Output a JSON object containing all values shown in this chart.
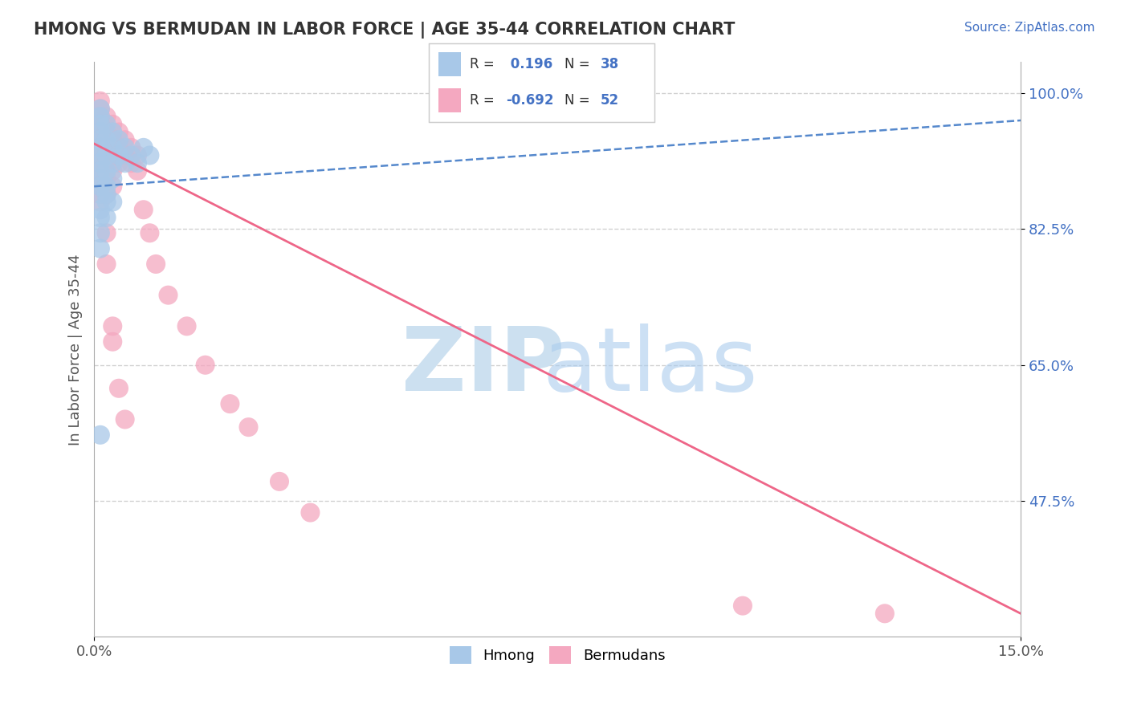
{
  "title": "HMONG VS BERMUDAN IN LABOR FORCE | AGE 35-44 CORRELATION CHART",
  "source": "Source: ZipAtlas.com",
  "ylabel": "In Labor Force | Age 35-44",
  "xlim": [
    0.0,
    0.15
  ],
  "ylim": [
    0.3,
    1.04
  ],
  "xticks": [
    0.0,
    0.15
  ],
  "xticklabels": [
    "0.0%",
    "15.0%"
  ],
  "yticks": [
    0.475,
    0.65,
    0.825,
    1.0
  ],
  "yticklabels": [
    "47.5%",
    "65.0%",
    "82.5%",
    "100.0%"
  ],
  "hmong_R": 0.196,
  "hmong_N": 38,
  "bermudan_R": -0.692,
  "bermudan_N": 52,
  "hmong_color": "#a8c8e8",
  "bermudan_color": "#f4a8c0",
  "hmong_line_color": "#5588cc",
  "bermudan_line_color": "#ee6688",
  "background_color": "#ffffff",
  "grid_color": "#cccccc",
  "title_color": "#333333",
  "watermark_zip_color": "#cce0f0",
  "watermark_atlas_color": "#aaccee",
  "axis_label_color": "#4472c4",
  "ylabel_color": "#555555",
  "source_color": "#4472c4",
  "legend_text_color": "#333333",
  "legend_value_color": "#4472c4",
  "hmong_x": [
    0.001,
    0.001,
    0.001,
    0.001,
    0.001,
    0.001,
    0.001,
    0.001,
    0.001,
    0.001,
    0.001,
    0.001,
    0.002,
    0.002,
    0.002,
    0.002,
    0.002,
    0.002,
    0.002,
    0.003,
    0.003,
    0.003,
    0.003,
    0.004,
    0.004,
    0.005,
    0.005,
    0.006,
    0.007,
    0.008,
    0.009,
    0.001,
    0.001,
    0.002,
    0.003,
    0.001,
    0.001,
    0.001
  ],
  "hmong_y": [
    0.98,
    0.97,
    0.96,
    0.95,
    0.94,
    0.93,
    0.92,
    0.91,
    0.9,
    0.89,
    0.88,
    0.87,
    0.96,
    0.94,
    0.92,
    0.9,
    0.88,
    0.86,
    0.84,
    0.95,
    0.93,
    0.91,
    0.89,
    0.94,
    0.92,
    0.93,
    0.91,
    0.92,
    0.91,
    0.93,
    0.92,
    0.85,
    0.84,
    0.87,
    0.86,
    0.82,
    0.8,
    0.56
  ],
  "bermudan_x": [
    0.001,
    0.001,
    0.001,
    0.001,
    0.001,
    0.001,
    0.001,
    0.001,
    0.001,
    0.001,
    0.001,
    0.001,
    0.001,
    0.002,
    0.002,
    0.002,
    0.002,
    0.002,
    0.002,
    0.003,
    0.003,
    0.003,
    0.003,
    0.003,
    0.004,
    0.004,
    0.004,
    0.005,
    0.005,
    0.006,
    0.006,
    0.007,
    0.007,
    0.008,
    0.009,
    0.01,
    0.012,
    0.015,
    0.018,
    0.022,
    0.025,
    0.03,
    0.035,
    0.001,
    0.002,
    0.003,
    0.004,
    0.002,
    0.003,
    0.005,
    0.105,
    0.128
  ],
  "bermudan_y": [
    0.99,
    0.98,
    0.97,
    0.96,
    0.95,
    0.94,
    0.93,
    0.92,
    0.91,
    0.9,
    0.89,
    0.88,
    0.87,
    0.97,
    0.95,
    0.93,
    0.91,
    0.89,
    0.87,
    0.96,
    0.94,
    0.92,
    0.9,
    0.88,
    0.95,
    0.93,
    0.91,
    0.94,
    0.92,
    0.93,
    0.91,
    0.92,
    0.9,
    0.85,
    0.82,
    0.78,
    0.74,
    0.7,
    0.65,
    0.6,
    0.57,
    0.5,
    0.46,
    0.86,
    0.78,
    0.7,
    0.62,
    0.82,
    0.68,
    0.58,
    0.34,
    0.33
  ],
  "hmong_line_x0": 0.0,
  "hmong_line_x1": 0.15,
  "hmong_line_y0": 0.88,
  "hmong_line_y1": 0.965,
  "bermudan_line_x0": 0.0,
  "bermudan_line_x1": 0.15,
  "bermudan_line_y0": 0.935,
  "bermudan_line_y1": 0.33
}
